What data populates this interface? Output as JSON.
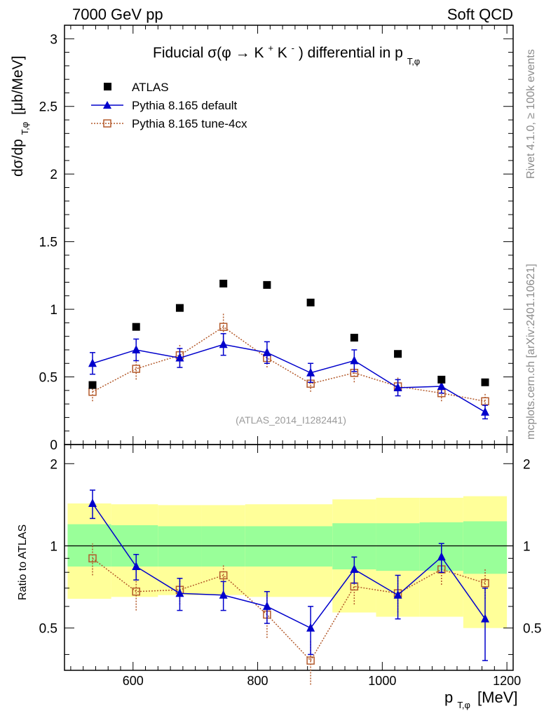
{
  "header": {
    "left": "7000 GeV pp",
    "right": "Soft QCD"
  },
  "title": {
    "prefix": "Fiducial",
    "sigma": "σ(φ → ",
    "kk": "K",
    "sup_plus": "+",
    "kk2": "K",
    "sup_minus": "-",
    "suffix": ") differential in p",
    "sub": "T,φ"
  },
  "side": {
    "rivet": "Rivet 4.1.0, ≥ 100k events",
    "mcplots": "mcplots.cern.ch [arXiv:2401.10621]"
  },
  "watermark": "(ATLAS_2014_I1282441)",
  "ylabel_top": {
    "main": "dσ/dp",
    "sub": "T,φ",
    "unit": "[μb/MeV]"
  },
  "ylabel_bottom": "Ratio to ATLAS",
  "xlabel": {
    "main": "p",
    "sub": "T,φ",
    "unit": "[MeV]"
  },
  "legend": {
    "atlas": "ATLAS",
    "pythia_default": "Pythia 8.165 default",
    "pythia_tune": "Pythia 8.165 tune-4cx"
  },
  "colors": {
    "atlas": "#000000",
    "pythia_default": "#0000cc",
    "pythia_tune": "#b3592a",
    "band_inner": "#99ff99",
    "band_outer": "#ffff99"
  },
  "chart_data": [
    {
      "type": "scatter",
      "panel": "main",
      "xlim": [
        490,
        1210
      ],
      "ylim": [
        0,
        3.1
      ],
      "x_ticks": [
        600,
        800,
        1000,
        1200
      ],
      "y_ticks": [
        "0",
        "0.5",
        "1",
        "1.5",
        "2",
        "2.5",
        "3"
      ],
      "y_tick_values": [
        0,
        0.5,
        1,
        1.5,
        2,
        2.5,
        3
      ],
      "x": [
        535,
        605,
        675,
        745,
        815,
        885,
        955,
        1025,
        1095,
        1165
      ],
      "series": [
        {
          "name": "ATLAS",
          "values": [
            0.44,
            0.87,
            1.01,
            1.19,
            1.18,
            1.05,
            0.79,
            0.67,
            0.48,
            0.46
          ]
        },
        {
          "name": "Pythia 8.165 default",
          "values": [
            0.6,
            0.7,
            0.64,
            0.74,
            0.68,
            0.53,
            0.62,
            0.42,
            0.43,
            0.24
          ],
          "errors": [
            0.08,
            0.08,
            0.07,
            0.08,
            0.08,
            0.07,
            0.08,
            0.06,
            0.05,
            0.05
          ]
        },
        {
          "name": "Pythia 8.165 tune-4cx",
          "values": [
            0.39,
            0.56,
            0.66,
            0.87,
            0.64,
            0.45,
            0.53,
            0.43,
            0.38,
            0.32
          ],
          "errors": [
            0.07,
            0.08,
            0.08,
            0.1,
            0.07,
            0.06,
            0.07,
            0.07,
            0.06,
            0.06
          ]
        }
      ]
    },
    {
      "type": "line",
      "panel": "ratio",
      "xlim": [
        490,
        1210
      ],
      "ylim": [
        0.35,
        2.35
      ],
      "y_ticks": [
        "0.5",
        "1",
        "2"
      ],
      "y_tick_values": [
        0.5,
        1,
        2
      ],
      "x_ticks": [
        "600",
        "800",
        "1000",
        "1200"
      ],
      "x_tick_values": [
        600,
        800,
        1000,
        1200
      ],
      "x": [
        535,
        605,
        675,
        745,
        815,
        885,
        955,
        1025,
        1095,
        1165
      ],
      "series": [
        {
          "name": "Pythia 8.165 default",
          "values": [
            1.43,
            0.84,
            0.67,
            0.66,
            0.6,
            0.5,
            0.82,
            0.66,
            0.91,
            0.54
          ],
          "errors": [
            0.17,
            0.09,
            0.09,
            0.08,
            0.08,
            0.1,
            0.09,
            0.12,
            0.11,
            0.16
          ]
        },
        {
          "name": "Pythia 8.165 tune-4cx",
          "values": [
            0.9,
            0.68,
            0.69,
            0.78,
            0.56,
            0.38,
            0.71,
            0.67,
            0.82,
            0.73
          ],
          "errors": [
            0.12,
            0.1,
            0.08,
            0.07,
            0.1,
            0.07,
            0.1,
            0.1,
            0.1,
            0.09
          ]
        }
      ],
      "bands": {
        "edges": [
          495,
          565,
          640,
          710,
          780,
          850,
          920,
          990,
          1060,
          1130,
          1200
        ],
        "inner": [
          [
            0.84,
            1.2
          ],
          [
            0.84,
            1.19
          ],
          [
            0.84,
            1.18
          ],
          [
            0.84,
            1.18
          ],
          [
            0.84,
            1.18
          ],
          [
            0.84,
            1.18
          ],
          [
            0.82,
            1.21
          ],
          [
            0.81,
            1.21
          ],
          [
            0.81,
            1.22
          ],
          [
            0.79,
            1.23
          ]
        ],
        "outer": [
          [
            0.64,
            1.43
          ],
          [
            0.65,
            1.42
          ],
          [
            0.66,
            1.41
          ],
          [
            0.66,
            1.41
          ],
          [
            0.65,
            1.42
          ],
          [
            0.65,
            1.42
          ],
          [
            0.57,
            1.48
          ],
          [
            0.55,
            1.5
          ],
          [
            0.55,
            1.5
          ],
          [
            0.5,
            1.52
          ]
        ]
      }
    }
  ]
}
